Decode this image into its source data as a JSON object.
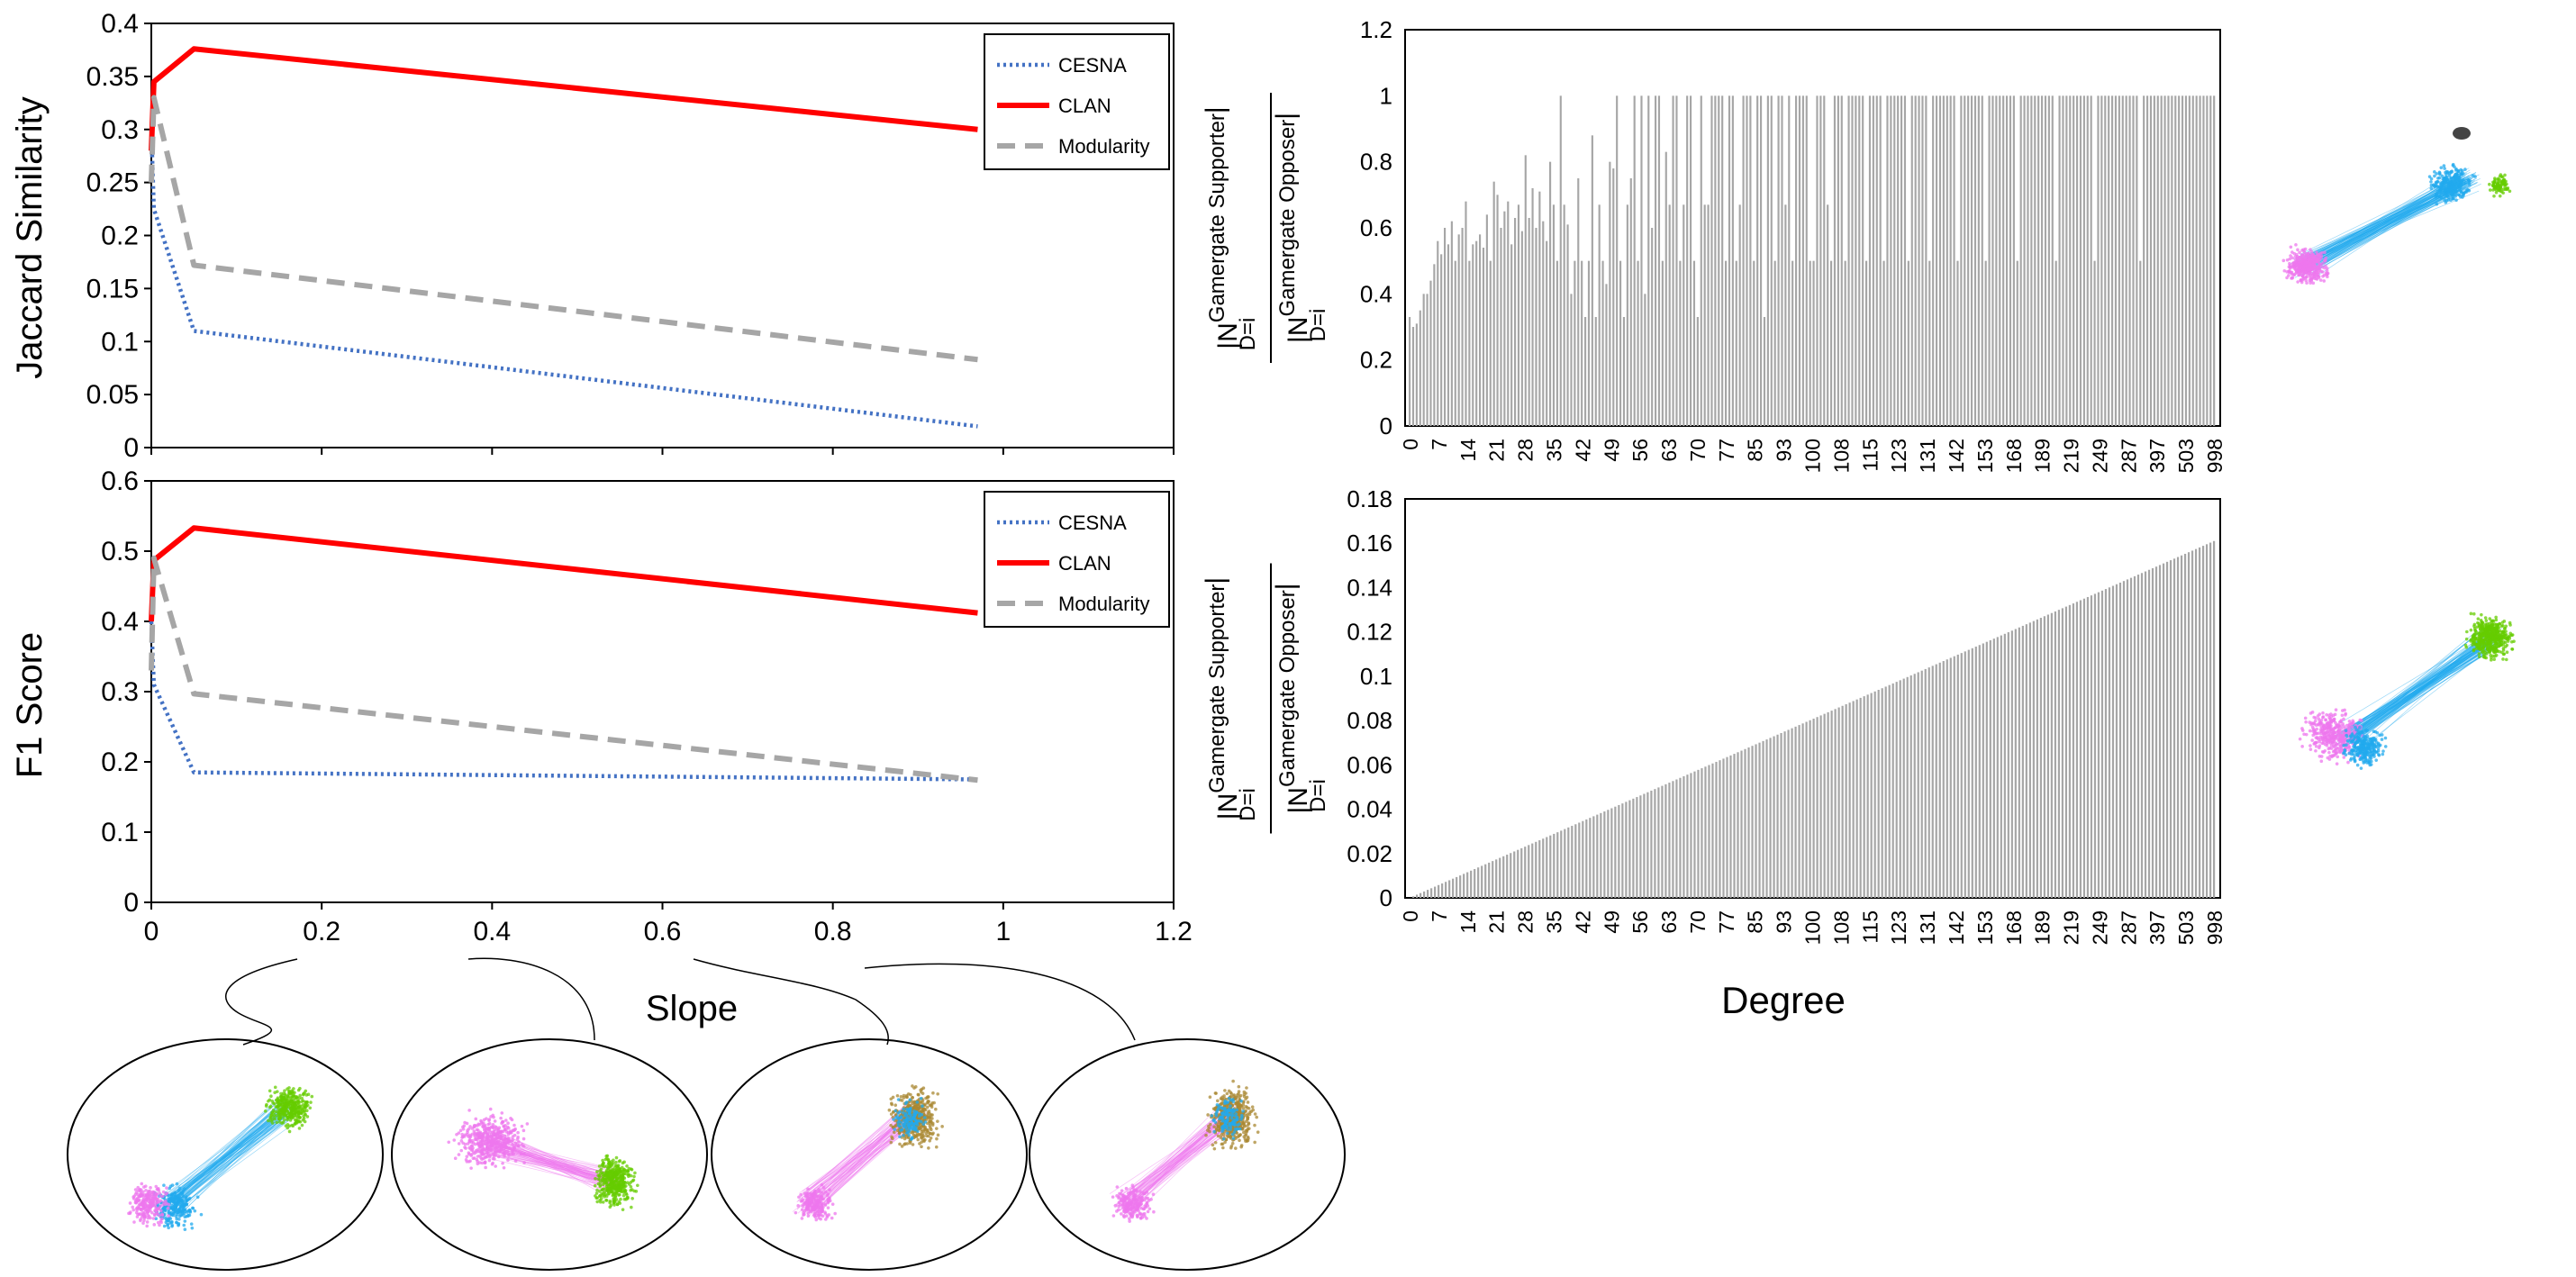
{
  "chart_data": [
    {
      "type": "line",
      "ylabel": "Jaccard Similarity",
      "yticks": [
        "0",
        "0.05",
        "0.1",
        "0.15",
        "0.2",
        "0.25",
        "0.3",
        "0.35",
        "0.4"
      ],
      "ylim": [
        0,
        0.4
      ],
      "xlim": [
        0,
        1.2
      ],
      "legend_position": "top-right",
      "series": [
        {
          "name": "CESNA",
          "color": "#4472c4",
          "style": "dotted",
          "x": [
            0,
            0.003,
            0.05,
            0.97
          ],
          "y": [
            0.3,
            0.225,
            0.11,
            0.02
          ]
        },
        {
          "name": "CLAN",
          "color": "#ff0000",
          "style": "solid",
          "x": [
            0,
            0.003,
            0.05,
            0.97
          ],
          "y": [
            0.28,
            0.345,
            0.376,
            0.3
          ]
        },
        {
          "name": "Modularity",
          "color": "#a6a6a6",
          "style": "dashed",
          "x": [
            0,
            0.003,
            0.05,
            0.97
          ],
          "y": [
            0.25,
            0.33,
            0.172,
            0.083
          ]
        }
      ]
    },
    {
      "type": "line",
      "ylabel": "F1 Score",
      "xlabel": "Slope",
      "yticks": [
        "0",
        "0.1",
        "0.2",
        "0.3",
        "0.4",
        "0.5",
        "0.6"
      ],
      "xticks": [
        "0",
        "0.2",
        "0.4",
        "0.6",
        "0.8",
        "1",
        "1.2"
      ],
      "ylim": [
        0,
        0.6
      ],
      "xlim": [
        0,
        1.2
      ],
      "legend_position": "top-right",
      "series": [
        {
          "name": "CESNA",
          "color": "#4472c4",
          "style": "dotted",
          "x": [
            0,
            0.003,
            0.05,
            0.97
          ],
          "y": [
            0.4,
            0.31,
            0.185,
            0.175
          ]
        },
        {
          "name": "CLAN",
          "color": "#ff0000",
          "style": "solid",
          "x": [
            0,
            0.003,
            0.05,
            0.97
          ],
          "y": [
            0.4,
            0.487,
            0.533,
            0.412
          ]
        },
        {
          "name": "Modularity",
          "color": "#a6a6a6",
          "style": "dashed",
          "x": [
            0,
            0.003,
            0.05,
            0.97
          ],
          "y": [
            0.33,
            0.49,
            0.297,
            0.174
          ]
        }
      ]
    },
    {
      "type": "bar",
      "ylabel_main": "|N",
      "ylabel_sup_num": "Gamergate Supporter",
      "ylabel_sup_den": "Gamergate Opposer",
      "ylabel_sub": "D=i",
      "yticks": [
        "0",
        "0.2",
        "0.4",
        "0.6",
        "0.8",
        "1",
        "1.2"
      ],
      "ylim": [
        0,
        1.2
      ],
      "xticks": [
        "0",
        "7",
        "14",
        "21",
        "28",
        "35",
        "42",
        "49",
        "56",
        "63",
        "70",
        "77",
        "85",
        "93",
        "100",
        "108",
        "115",
        "123",
        "131",
        "142",
        "153",
        "168",
        "189",
        "219",
        "249",
        "287",
        "397",
        "503",
        "998"
      ],
      "bar_color": "#a6a6a6",
      "n_bars": 224,
      "values": [
        0.33,
        0.3,
        0.31,
        0.35,
        0.4,
        0.4,
        0.44,
        0.49,
        0.56,
        0.52,
        0.6,
        0.55,
        0.62,
        0.5,
        0.58,
        0.6,
        0.68,
        0.5,
        0.55,
        0.56,
        0.58,
        0.54,
        0.64,
        0.5,
        0.74,
        0.7,
        0.6,
        0.65,
        0.68,
        0.55,
        0.63,
        0.67,
        0.59,
        0.82,
        0.63,
        0.72,
        0.6,
        0.71,
        0.62,
        0.56,
        0.8,
        0.67,
        0.5,
        1.0,
        0.67,
        0.61,
        0.4,
        0.5,
        0.75,
        0.5,
        0.33,
        0.5,
        0.88,
        0.33,
        0.67,
        0.5,
        0.43,
        0.8,
        0.78,
        1.0,
        0.5,
        0.33,
        0.67,
        0.75,
        1.0,
        0.5,
        1.0,
        0.4,
        1.0,
        0.6,
        1.0,
        1.0,
        0.5,
        0.83,
        0.67,
        1.0,
        1.0,
        0.5,
        0.67,
        1.0,
        1.0,
        0.5,
        0.33,
        1.0,
        0.67,
        0.67,
        1.0,
        1.0,
        1.0,
        1.0,
        0.5,
        1.0,
        1.0,
        0.5,
        0.67,
        1.0,
        1.0,
        1.0,
        0.5,
        1.0,
        1.0,
        0.33,
        1.0,
        1.0,
        0.5,
        1.0,
        1.0,
        0.67,
        1.0,
        0.5,
        1.0,
        1.0,
        1.0,
        1.0,
        0.5,
        0.5,
        1.0,
        1.0,
        1.0,
        0.67,
        0.5,
        1.0,
        1.0,
        1.0,
        0.5,
        1.0,
        1.0,
        1.0,
        1.0,
        1.0,
        0.5,
        1.0,
        1.0,
        1.0,
        1.0,
        0.5,
        1.0,
        1.0,
        1.0,
        1.0,
        1.0,
        1.0,
        0.5,
        1.0,
        1.0,
        1.0,
        1.0,
        1.0,
        0.5,
        1.0,
        1.0,
        1.0,
        1.0,
        1.0,
        1.0,
        1.0,
        0.5,
        1.0,
        1.0,
        1.0,
        1.0,
        1.0,
        1.0,
        1.0,
        0.5,
        1.0,
        1.0,
        1.0,
        1.0,
        1.0,
        1.0,
        1.0,
        1.0,
        0.5,
        1.0,
        1.0,
        1.0,
        1.0,
        1.0,
        1.0,
        1.0,
        1.0,
        1.0,
        1.0,
        0.5,
        1.0,
        1.0,
        1.0,
        1.0,
        1.0,
        1.0,
        1.0,
        1.0,
        1.0,
        1.0,
        0.5,
        1.0,
        1.0,
        1.0,
        1.0,
        1.0,
        1.0,
        1.0,
        1.0,
        1.0,
        1.0,
        1.0,
        1.0,
        0.5,
        1.0,
        1.0,
        1.0,
        1.0,
        1.0,
        1.0,
        1.0,
        1.0,
        1.0,
        1.0,
        1.0,
        1.0,
        1.0,
        1.0,
        1.0,
        1.0,
        1.0,
        1.0,
        1.0,
        1.0,
        1.0
      ]
    },
    {
      "type": "bar",
      "ylabel_main": "|N",
      "ylabel_sup_num": "Gamergate Supporter",
      "ylabel_sup_den": "Gamergate Opposer",
      "ylabel_sub": "D=i",
      "xlabel": "Degree",
      "yticks": [
        "0",
        "0.02",
        "0.04",
        "0.06",
        "0.08",
        "0.1",
        "0.12",
        "0.14",
        "0.16",
        "0.18"
      ],
      "ylim": [
        0,
        0.18
      ],
      "xticks": [
        "0",
        "7",
        "14",
        "21",
        "28",
        "35",
        "42",
        "49",
        "56",
        "63",
        "70",
        "77",
        "85",
        "93",
        "100",
        "108",
        "115",
        "123",
        "131",
        "142",
        "153",
        "168",
        "189",
        "219",
        "249",
        "287",
        "397",
        "503",
        "998"
      ],
      "bar_color": "#a6a6a6",
      "n_bars": 224,
      "trend": "linear increase from 0 to 0.161"
    }
  ],
  "network_images": {
    "bottom": [
      {
        "clusters": [
          {
            "color": "#66cc00"
          },
          {
            "color": "#22aaee"
          },
          {
            "color": "#ee77ee"
          }
        ]
      },
      {
        "clusters": [
          {
            "color": "#ee77ee"
          },
          {
            "color": "#66cc00"
          }
        ]
      },
      {
        "clusters": [
          {
            "color": "#aa8833"
          },
          {
            "color": "#ee77ee"
          },
          {
            "color": "#22aaee"
          }
        ]
      },
      {
        "clusters": [
          {
            "color": "#aa8833"
          },
          {
            "color": "#ee77ee"
          },
          {
            "color": "#22aaee"
          }
        ]
      }
    ],
    "right": [
      {
        "clusters": [
          {
            "color": "#ee77ee"
          },
          {
            "color": "#22aaee"
          },
          {
            "color": "#66cc00"
          }
        ]
      },
      {
        "clusters": [
          {
            "color": "#ee77ee"
          },
          {
            "color": "#22aaee"
          },
          {
            "color": "#66cc00"
          }
        ]
      }
    ]
  }
}
